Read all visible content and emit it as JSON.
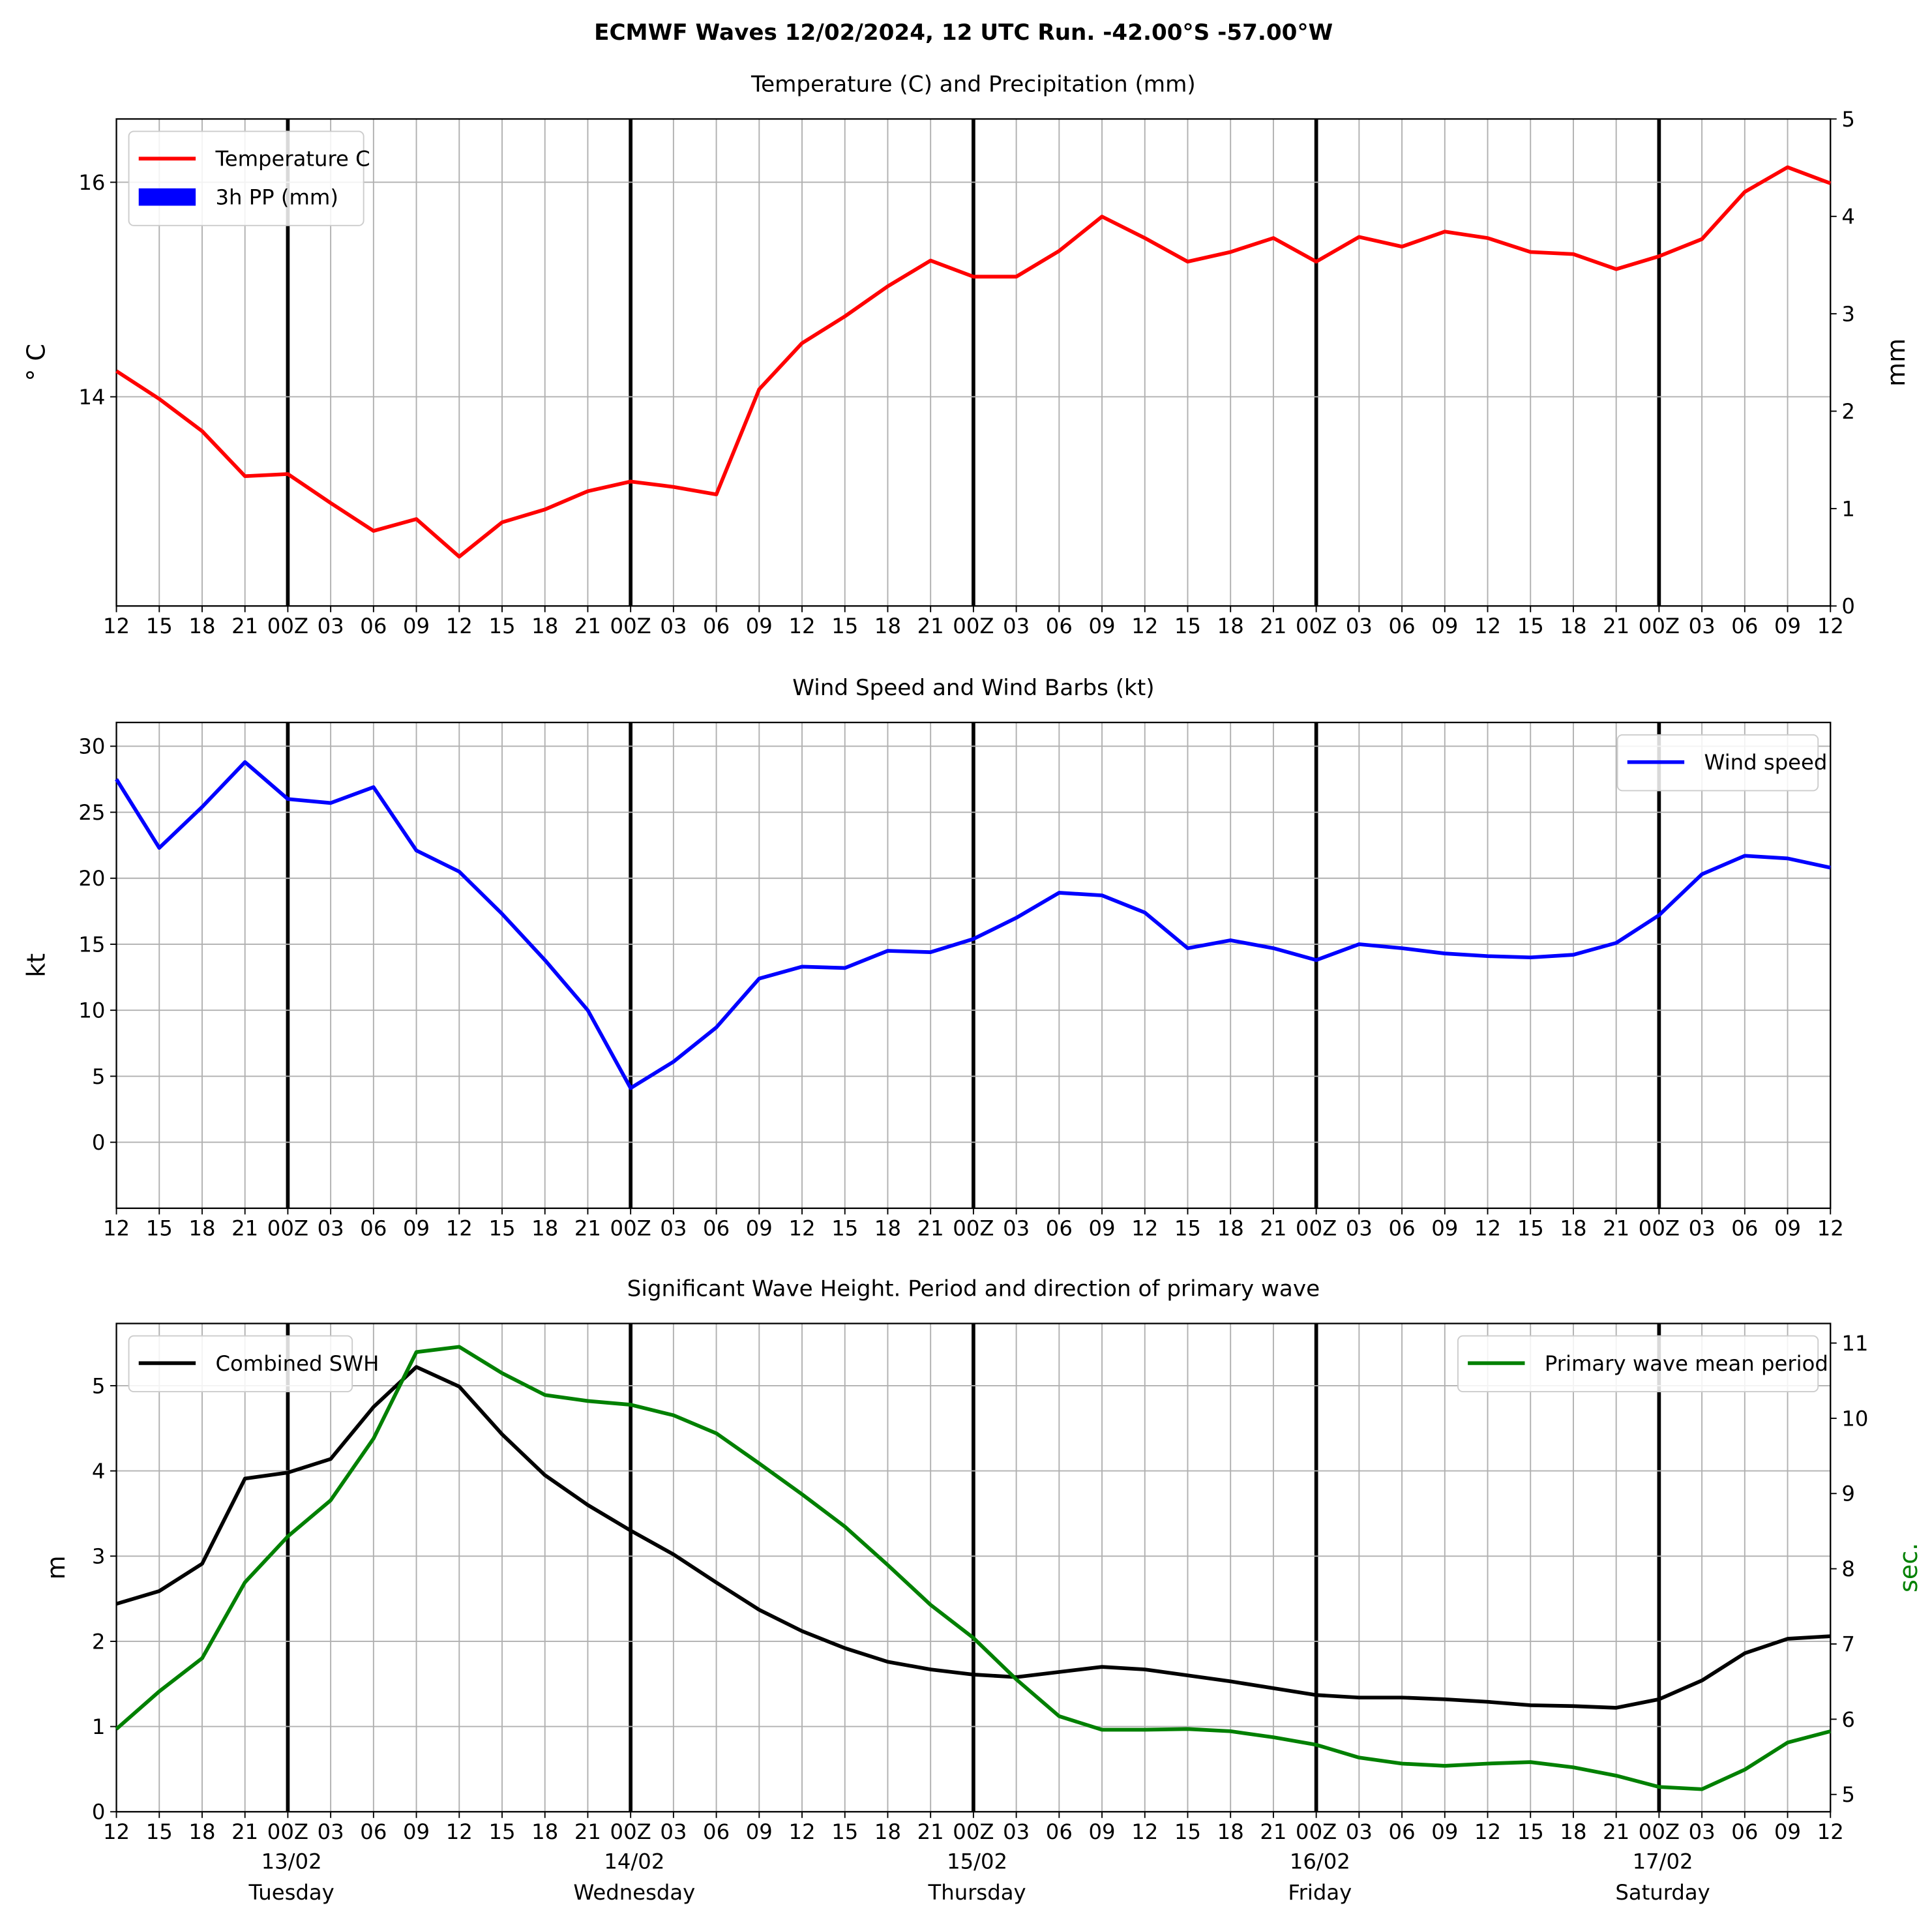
{
  "title": "ECMWF Waves 12/02/2024, 12 UTC Run. -42.00°S -57.00°W",
  "chart_data": [
    {
      "type": "line",
      "title": "Temperature (C) and Precipitation (mm)",
      "ylabel": "° C",
      "y2label": "mm",
      "categories": [
        "12",
        "15",
        "18",
        "21",
        "00Z",
        "03",
        "06",
        "09",
        "12",
        "15",
        "18",
        "21",
        "00Z",
        "03",
        "06",
        "09",
        "12",
        "15",
        "18",
        "21",
        "00Z",
        "03",
        "06",
        "09",
        "12",
        "15",
        "18",
        "21",
        "00Z",
        "03",
        "06",
        "09",
        "12",
        "15",
        "18",
        "21",
        "00Z",
        "03",
        "06",
        "09",
        "12"
      ],
      "ylim": [
        12.05,
        16.59
      ],
      "yticks": [
        14,
        16
      ],
      "y2lim": [
        0,
        5
      ],
      "y2ticks": [
        0,
        1,
        2,
        3,
        4,
        5
      ],
      "grid": true,
      "legend": "upper left",
      "series": [
        {
          "name": "Temperature C",
          "color": "#ff0000",
          "values": [
            14.24,
            13.98,
            13.68,
            13.26,
            13.28,
            13.01,
            12.75,
            12.86,
            12.51,
            12.83,
            12.95,
            13.12,
            13.21,
            13.16,
            13.09,
            14.07,
            14.5,
            14.75,
            15.03,
            15.27,
            15.12,
            15.12,
            15.36,
            15.68,
            15.48,
            15.26,
            15.35,
            15.48,
            15.26,
            15.49,
            15.4,
            15.54,
            15.48,
            15.35,
            15.33,
            15.19,
            15.31,
            15.47,
            15.91,
            16.14,
            15.99
          ]
        },
        {
          "name": "3h PP (mm)",
          "color": "#0000ff",
          "type": "bar",
          "axis": "y2",
          "values": [
            0,
            0,
            0,
            0,
            0,
            0,
            0,
            0,
            0,
            0,
            0,
            0,
            0,
            0,
            0,
            0,
            0,
            0,
            0,
            0,
            0,
            0,
            0,
            0,
            0,
            0,
            0,
            0,
            0,
            0,
            0,
            0,
            0,
            0,
            0,
            0,
            0,
            0,
            0,
            0,
            0
          ]
        }
      ]
    },
    {
      "type": "line",
      "title": "Wind Speed and Wind Barbs (kt)",
      "ylabel": "kt",
      "categories": [
        "12",
        "15",
        "18",
        "21",
        "00Z",
        "03",
        "06",
        "09",
        "12",
        "15",
        "18",
        "21",
        "00Z",
        "03",
        "06",
        "09",
        "12",
        "15",
        "18",
        "21",
        "00Z",
        "03",
        "06",
        "09",
        "12",
        "15",
        "18",
        "21",
        "00Z",
        "03",
        "06",
        "09",
        "12",
        "15",
        "18",
        "21",
        "00Z",
        "03",
        "06",
        "09",
        "12"
      ],
      "ylim": [
        -5,
        31.8
      ],
      "yticks": [
        0,
        5,
        10,
        15,
        20,
        25,
        30
      ],
      "grid": true,
      "legend": "upper right",
      "series": [
        {
          "name": "Wind speed",
          "color": "#0000ff",
          "values": [
            27.5,
            22.3,
            25.4,
            28.8,
            26.0,
            25.7,
            26.9,
            22.1,
            20.5,
            17.3,
            13.8,
            10.0,
            4.1,
            6.1,
            8.7,
            12.4,
            13.3,
            13.2,
            14.5,
            14.4,
            15.4,
            17.0,
            18.9,
            18.7,
            17.4,
            14.7,
            15.3,
            14.7,
            13.8,
            15.0,
            14.7,
            14.3,
            14.1,
            14.0,
            14.2,
            15.1,
            17.2,
            20.3,
            21.7,
            21.5,
            20.8
          ]
        }
      ]
    },
    {
      "type": "line",
      "title": "Significant Wave Height. Period and direction of primary wave",
      "ylabel": "m",
      "y2label": "sec.",
      "y2label_color": "#008000",
      "categories": [
        "12",
        "15",
        "18",
        "21",
        "00Z",
        "03",
        "06",
        "09",
        "12",
        "15",
        "18",
        "21",
        "00Z",
        "03",
        "06",
        "09",
        "12",
        "15",
        "18",
        "21",
        "00Z",
        "03",
        "06",
        "09",
        "12",
        "15",
        "18",
        "21",
        "00Z",
        "03",
        "06",
        "09",
        "12",
        "15",
        "18",
        "21",
        "00Z",
        "03",
        "06",
        "09",
        "12"
      ],
      "ylim": [
        0,
        5.73
      ],
      "yticks": [
        0,
        1,
        2,
        3,
        4,
        5
      ],
      "y2lim": [
        4.77,
        11.26
      ],
      "y2ticks": [
        5,
        6,
        7,
        8,
        9,
        10,
        11
      ],
      "grid": true,
      "legend": "upper left",
      "day_labels": [
        {
          "date": "13/02",
          "day": "Tuesday"
        },
        {
          "date": "14/02",
          "day": "Wednesday"
        },
        {
          "date": "15/02",
          "day": "Thursday"
        },
        {
          "date": "16/02",
          "day": "Friday"
        },
        {
          "date": "17/02",
          "day": "Saturday"
        }
      ],
      "series": [
        {
          "name": "Combined SWH",
          "color": "#000000",
          "values": [
            2.44,
            2.59,
            2.91,
            3.91,
            3.98,
            4.14,
            4.75,
            5.22,
            4.99,
            4.43,
            3.95,
            3.6,
            3.3,
            3.02,
            2.69,
            2.37,
            2.12,
            1.92,
            1.76,
            1.67,
            1.61,
            1.58,
            1.64,
            1.7,
            1.67,
            1.6,
            1.53,
            1.45,
            1.37,
            1.34,
            1.34,
            1.32,
            1.29,
            1.25,
            1.24,
            1.22,
            1.32,
            1.54,
            1.86,
            2.03,
            2.06
          ]
        },
        {
          "name": "Primary wave mean period",
          "color": "#008000",
          "axis": "y2",
          "legend": "upper right",
          "values": [
            5.87,
            6.37,
            6.81,
            7.82,
            8.43,
            8.91,
            9.73,
            10.88,
            10.95,
            10.6,
            10.31,
            10.23,
            10.18,
            10.04,
            9.8,
            9.4,
            8.99,
            8.56,
            8.05,
            7.52,
            7.08,
            6.53,
            6.04,
            5.86,
            5.86,
            5.87,
            5.84,
            5.76,
            5.66,
            5.49,
            5.41,
            5.38,
            5.41,
            5.43,
            5.36,
            5.25,
            5.1,
            5.07,
            5.33,
            5.69,
            5.84
          ]
        }
      ]
    }
  ]
}
